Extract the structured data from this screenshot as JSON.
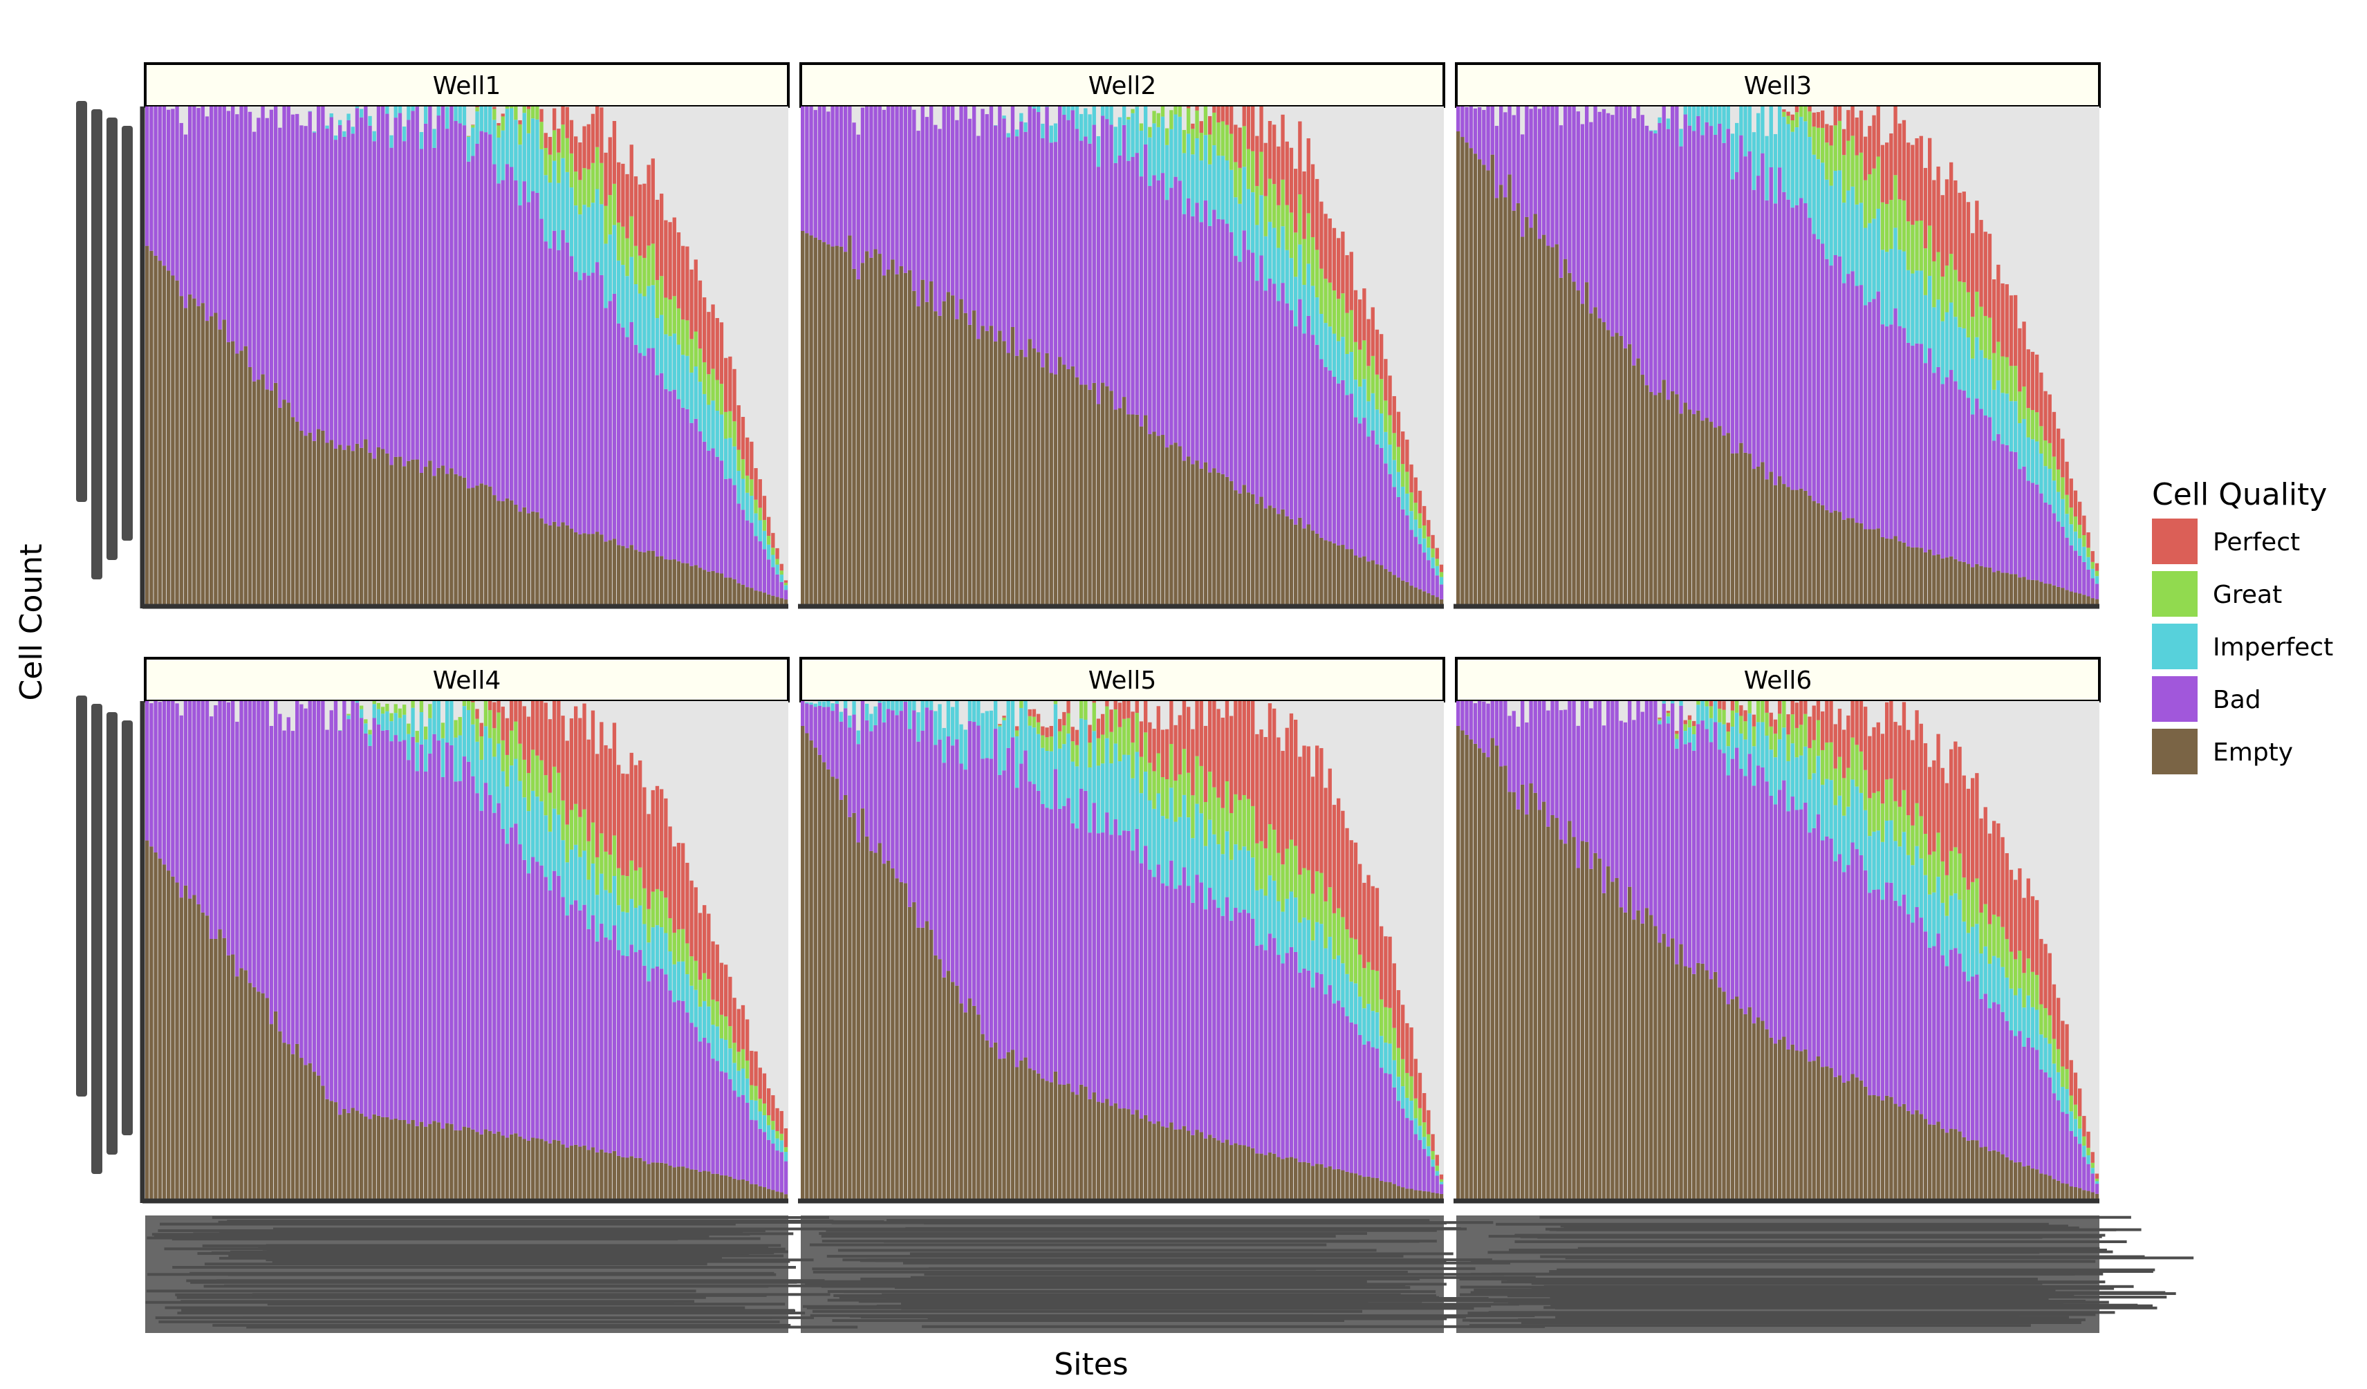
{
  "chart_data": {
    "type": "bar",
    "stacked": true,
    "facet_by": "Well",
    "xlabel": "Sites",
    "ylabel": "Cell Count",
    "x_tick_labels_legible": false,
    "y_tick_labels_legible": false,
    "grid": false,
    "legend": {
      "title": "Cell Quality",
      "placement": "right",
      "entries": [
        {
          "label": "Perfect",
          "color": "#DB5F57"
        },
        {
          "label": "Great",
          "color": "#91DA4F"
        },
        {
          "label": "Imperfect",
          "color": "#57D1DB"
        },
        {
          "label": "Bad",
          "color": "#A157DB"
        },
        {
          "label": "Empty",
          "color": "#7A6445"
        }
      ]
    },
    "stack_order_bottom_to_top": [
      "Empty",
      "Bad",
      "Imperfect",
      "Great",
      "Perfect"
    ],
    "value_scale": "proportion of maximum site total (approximate; axis tick labels are illegible)",
    "facets": [
      {
        "title": "Well1",
        "site_count": 150,
        "profile": {
          "x": [
            0,
            0.25,
            0.5,
            0.6,
            0.7,
            0.8,
            0.9,
            0.95,
            1.0
          ],
          "total": [
            1.0,
            1.0,
            1.0,
            1.0,
            0.98,
            0.85,
            0.55,
            0.3,
            0.05
          ],
          "empty": [
            0.72,
            0.35,
            0.25,
            0.18,
            0.14,
            0.1,
            0.06,
            0.03,
            0.01
          ],
          "bad": [
            0.28,
            0.65,
            0.7,
            0.62,
            0.52,
            0.38,
            0.22,
            0.12,
            0.02
          ],
          "imperfect": [
            0.0,
            0.0,
            0.05,
            0.14,
            0.14,
            0.12,
            0.09,
            0.05,
            0.01
          ],
          "great": [
            0.0,
            0.0,
            0.0,
            0.05,
            0.08,
            0.08,
            0.06,
            0.03,
            0.005
          ],
          "perfect": [
            0.0,
            0.0,
            0.0,
            0.01,
            0.1,
            0.17,
            0.12,
            0.07,
            0.005
          ]
        }
      },
      {
        "title": "Well2",
        "site_count": 150,
        "profile": {
          "x": [
            0,
            0.3,
            0.5,
            0.6,
            0.7,
            0.8,
            0.9,
            0.95,
            1.0
          ],
          "total": [
            1.0,
            1.0,
            1.0,
            1.0,
            1.0,
            0.9,
            0.55,
            0.3,
            0.08
          ],
          "empty": [
            0.75,
            0.55,
            0.4,
            0.3,
            0.22,
            0.15,
            0.08,
            0.04,
            0.01
          ],
          "bad": [
            0.25,
            0.45,
            0.52,
            0.52,
            0.48,
            0.4,
            0.24,
            0.12,
            0.03
          ],
          "imperfect": [
            0.0,
            0.0,
            0.08,
            0.13,
            0.12,
            0.1,
            0.07,
            0.04,
            0.015
          ],
          "great": [
            0.0,
            0.0,
            0.0,
            0.05,
            0.08,
            0.1,
            0.07,
            0.04,
            0.01
          ],
          "perfect": [
            0.0,
            0.0,
            0.0,
            0.0,
            0.1,
            0.15,
            0.09,
            0.06,
            0.015
          ]
        }
      },
      {
        "title": "Well3",
        "site_count": 150,
        "profile": {
          "x": [
            0,
            0.3,
            0.5,
            0.6,
            0.7,
            0.8,
            0.9,
            0.95,
            1.0
          ],
          "total": [
            1.0,
            1.0,
            1.0,
            1.0,
            0.95,
            0.8,
            0.52,
            0.3,
            0.08
          ],
          "empty": [
            0.95,
            0.45,
            0.25,
            0.18,
            0.12,
            0.08,
            0.05,
            0.03,
            0.01
          ],
          "bad": [
            0.05,
            0.55,
            0.6,
            0.5,
            0.42,
            0.33,
            0.2,
            0.11,
            0.03
          ],
          "imperfect": [
            0.0,
            0.0,
            0.15,
            0.17,
            0.15,
            0.12,
            0.09,
            0.05,
            0.015
          ],
          "great": [
            0.0,
            0.0,
            0.0,
            0.1,
            0.1,
            0.09,
            0.06,
            0.04,
            0.01
          ],
          "perfect": [
            0.0,
            0.0,
            0.0,
            0.05,
            0.16,
            0.18,
            0.12,
            0.07,
            0.015
          ]
        }
      },
      {
        "title": "Well4",
        "site_count": 150,
        "profile": {
          "x": [
            0,
            0.3,
            0.5,
            0.6,
            0.7,
            0.8,
            0.9,
            0.95,
            1.0
          ],
          "total": [
            1.0,
            1.0,
            1.0,
            1.0,
            0.95,
            0.8,
            0.5,
            0.3,
            0.15
          ],
          "empty": [
            0.72,
            0.18,
            0.14,
            0.12,
            0.1,
            0.07,
            0.05,
            0.03,
            0.01
          ],
          "bad": [
            0.28,
            0.82,
            0.72,
            0.55,
            0.45,
            0.38,
            0.22,
            0.13,
            0.07
          ],
          "imperfect": [
            0.0,
            0.0,
            0.1,
            0.13,
            0.1,
            0.08,
            0.07,
            0.04,
            0.02
          ],
          "great": [
            0.0,
            0.0,
            0.04,
            0.08,
            0.08,
            0.07,
            0.05,
            0.03,
            0.01
          ],
          "perfect": [
            0.0,
            0.0,
            0.0,
            0.12,
            0.22,
            0.2,
            0.11,
            0.07,
            0.04
          ]
        }
      },
      {
        "title": "Well5",
        "site_count": 150,
        "profile": {
          "x": [
            0,
            0.3,
            0.5,
            0.6,
            0.7,
            0.8,
            0.9,
            0.95,
            1.0
          ],
          "total": [
            1.0,
            1.0,
            1.0,
            1.0,
            1.0,
            0.9,
            0.6,
            0.35,
            0.05
          ],
          "empty": [
            0.95,
            0.3,
            0.18,
            0.14,
            0.1,
            0.07,
            0.04,
            0.02,
            0.01
          ],
          "bad": [
            0.05,
            0.6,
            0.55,
            0.5,
            0.45,
            0.38,
            0.25,
            0.14,
            0.02
          ],
          "imperfect": [
            0.0,
            0.1,
            0.15,
            0.14,
            0.12,
            0.1,
            0.07,
            0.04,
            0.005
          ],
          "great": [
            0.0,
            0.0,
            0.07,
            0.09,
            0.1,
            0.1,
            0.08,
            0.05,
            0.005
          ],
          "perfect": [
            0.0,
            0.0,
            0.05,
            0.13,
            0.23,
            0.25,
            0.16,
            0.1,
            0.01
          ]
        }
      },
      {
        "title": "Well6",
        "site_count": 150,
        "profile": {
          "x": [
            0,
            0.3,
            0.5,
            0.6,
            0.7,
            0.8,
            0.9,
            0.95,
            1.0
          ],
          "total": [
            1.0,
            1.0,
            1.0,
            1.0,
            0.95,
            0.85,
            0.6,
            0.35,
            0.05
          ],
          "empty": [
            0.95,
            0.55,
            0.32,
            0.25,
            0.18,
            0.12,
            0.06,
            0.03,
            0.01
          ],
          "bad": [
            0.05,
            0.45,
            0.5,
            0.45,
            0.4,
            0.33,
            0.24,
            0.14,
            0.02
          ],
          "imperfect": [
            0.0,
            0.0,
            0.1,
            0.12,
            0.12,
            0.1,
            0.08,
            0.05,
            0.005
          ],
          "great": [
            0.0,
            0.0,
            0.05,
            0.08,
            0.08,
            0.09,
            0.07,
            0.04,
            0.005
          ],
          "perfect": [
            0.0,
            0.0,
            0.03,
            0.1,
            0.17,
            0.21,
            0.15,
            0.09,
            0.01
          ]
        }
      }
    ]
  }
}
